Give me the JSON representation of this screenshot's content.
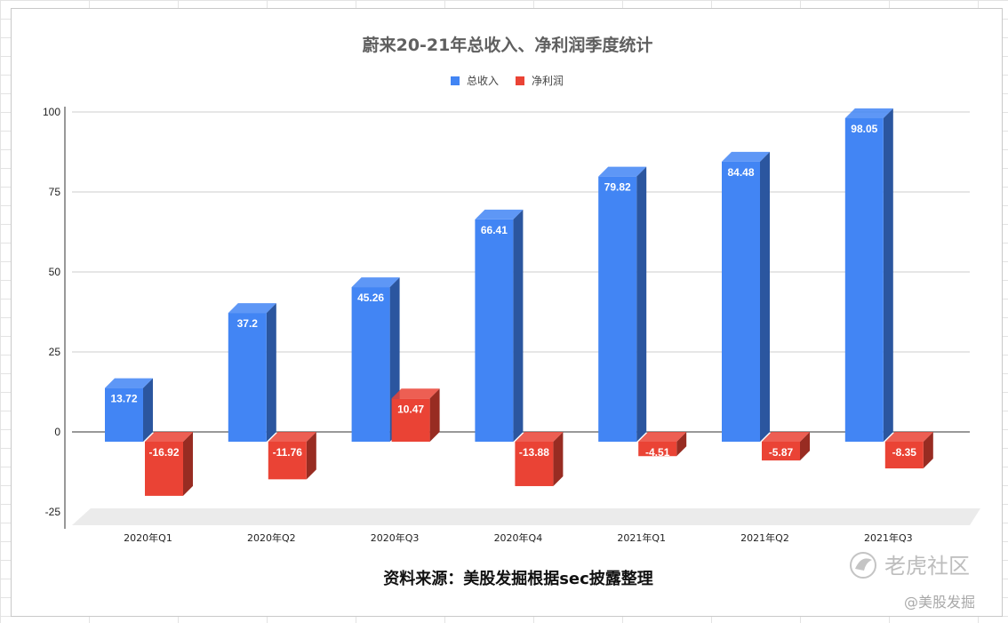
{
  "chart_data": {
    "type": "bar",
    "title": "蔚来20-21年总收入、净利润季度统计",
    "categories": [
      "2020年Q1",
      "2020年Q2",
      "2020年Q3",
      "2020年Q4",
      "2021年Q1",
      "2021年Q2",
      "2021年Q3"
    ],
    "series": [
      {
        "name": "总收入",
        "values": [
          13.72,
          37.2,
          45.26,
          66.41,
          79.82,
          84.48,
          98.05
        ],
        "color": "#4285f4"
      },
      {
        "name": "净利润",
        "values": [
          -16.92,
          -11.76,
          10.47,
          -13.88,
          -4.51,
          -5.87,
          -8.35
        ],
        "color": "#ea4335"
      }
    ],
    "yticks": [
      "100",
      "75",
      "50",
      "25",
      "0",
      "-25"
    ],
    "ylim": [
      -25,
      100
    ],
    "grid": true,
    "legend": "top-center",
    "style": "3d-column"
  },
  "footer": {
    "source": "资料来源：美股发掘根据sec披露整理"
  },
  "watermark": {
    "brand": "老虎社区",
    "handle": "@美股发掘"
  }
}
